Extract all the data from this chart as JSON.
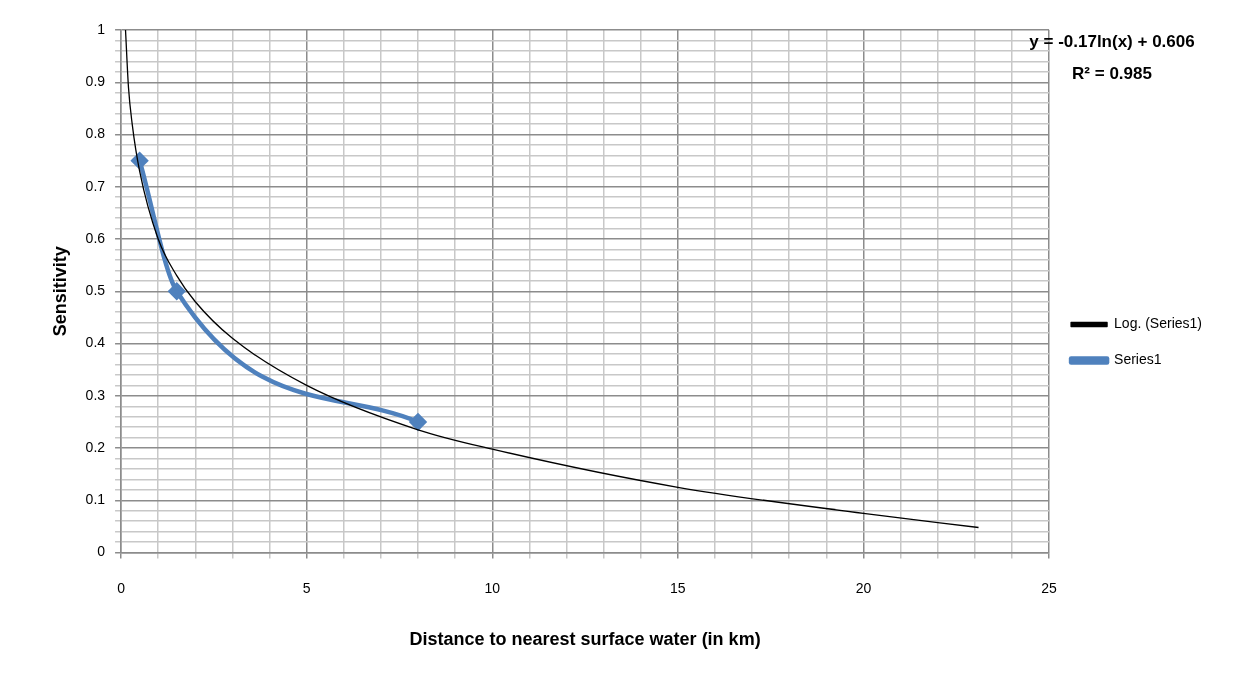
{
  "chart_data": {
    "type": "line",
    "xlabel": "Distance to nearest surface water (in km)",
    "ylabel": "Sensitivity",
    "series": [
      {
        "name": "Series1",
        "color": "#4f81bd",
        "marker": "diamond",
        "x": [
          0.5,
          1.5,
          8
        ],
        "values": [
          0.75,
          0.5,
          0.25
        ]
      },
      {
        "name": "Log. (Series1)",
        "color": "#000000",
        "marker": "none",
        "x": [
          0.12,
          0.2,
          0.3,
          0.5,
          1,
          1.5,
          2,
          3,
          5,
          8,
          10,
          15,
          20,
          23.1
        ],
        "values": [
          1,
          0.89,
          0.82,
          0.73,
          0.6,
          0.53,
          0.48,
          0.41,
          0.32,
          0.235,
          0.198,
          0.125,
          0.075,
          0.048
        ]
      }
    ],
    "xlim": [
      0,
      25
    ],
    "xticks": [
      0,
      {
        "value": 1,
        "label": null
      },
      {
        "value": 2,
        "label": null
      },
      {
        "value": 3,
        "label": null
      },
      {
        "value": 4,
        "label": null
      },
      5,
      {
        "value": 6,
        "label": null
      },
      {
        "value": 7,
        "label": null
      },
      {
        "value": 8,
        "label": null
      },
      {
        "value": 9,
        "label": null
      },
      10,
      {
        "value": 11,
        "label": null
      },
      {
        "value": 12,
        "label": null
      },
      {
        "value": 13,
        "label": null
      },
      {
        "value": 14,
        "label": null
      },
      15,
      {
        "value": 16,
        "label": null
      },
      {
        "value": 17,
        "label": null
      },
      {
        "value": 18,
        "label": null
      },
      {
        "value": 19,
        "label": null
      },
      20,
      {
        "value": 21,
        "label": null
      },
      {
        "value": 22,
        "label": null
      },
      {
        "value": 23,
        "label": null
      },
      {
        "value": 24,
        "label": null
      },
      25
    ],
    "ylim": [
      0,
      1
    ],
    "yticks": [
      0,
      {
        "value": 0.02,
        "label": null
      },
      {
        "value": 0.04,
        "label": null
      },
      {
        "value": 0.06,
        "label": null
      },
      {
        "value": 0.08,
        "label": null
      },
      0.1,
      {
        "value": 0.12,
        "label": null
      },
      {
        "value": 0.14,
        "label": null
      },
      {
        "value": 0.16,
        "label": null
      },
      {
        "value": 0.18,
        "label": null
      },
      0.2,
      {
        "value": 0.22,
        "label": null
      },
      {
        "value": 0.24,
        "label": null
      },
      {
        "value": 0.26,
        "label": null
      },
      {
        "value": 0.28,
        "label": null
      },
      0.3,
      {
        "value": 0.32,
        "label": null
      },
      {
        "value": 0.34,
        "label": null
      },
      {
        "value": 0.36,
        "label": null
      },
      {
        "value": 0.38,
        "label": null
      },
      0.4,
      {
        "value": 0.42,
        "label": null
      },
      {
        "value": 0.44,
        "label": null
      },
      {
        "value": 0.46,
        "label": null
      },
      {
        "value": 0.48,
        "label": null
      },
      0.5,
      {
        "value": 0.52,
        "label": null
      },
      {
        "value": 0.54,
        "label": null
      },
      {
        "value": 0.56,
        "label": null
      },
      {
        "value": 0.58,
        "label": null
      },
      0.6,
      {
        "value": 0.62,
        "label": null
      },
      {
        "value": 0.64,
        "label": null
      },
      {
        "value": 0.66,
        "label": null
      },
      {
        "value": 0.68,
        "label": null
      },
      0.7,
      {
        "value": 0.72,
        "label": null
      },
      {
        "value": 0.74,
        "label": null
      },
      {
        "value": 0.76,
        "label": null
      },
      {
        "value": 0.78,
        "label": null
      },
      0.8,
      {
        "value": 0.82,
        "label": null
      },
      {
        "value": 0.84,
        "label": null
      },
      {
        "value": 0.86,
        "label": null
      },
      {
        "value": 0.88,
        "label": null
      },
      0.9,
      {
        "value": 0.92,
        "label": null
      },
      {
        "value": 0.94,
        "label": null
      },
      {
        "value": 0.96,
        "label": null
      },
      {
        "value": 0.98,
        "label": null
      },
      1
    ],
    "grid": true,
    "legend": "right",
    "annotations": [
      "y = -0.17ln(x) + 0.606",
      "R² = 0.985"
    ]
  }
}
